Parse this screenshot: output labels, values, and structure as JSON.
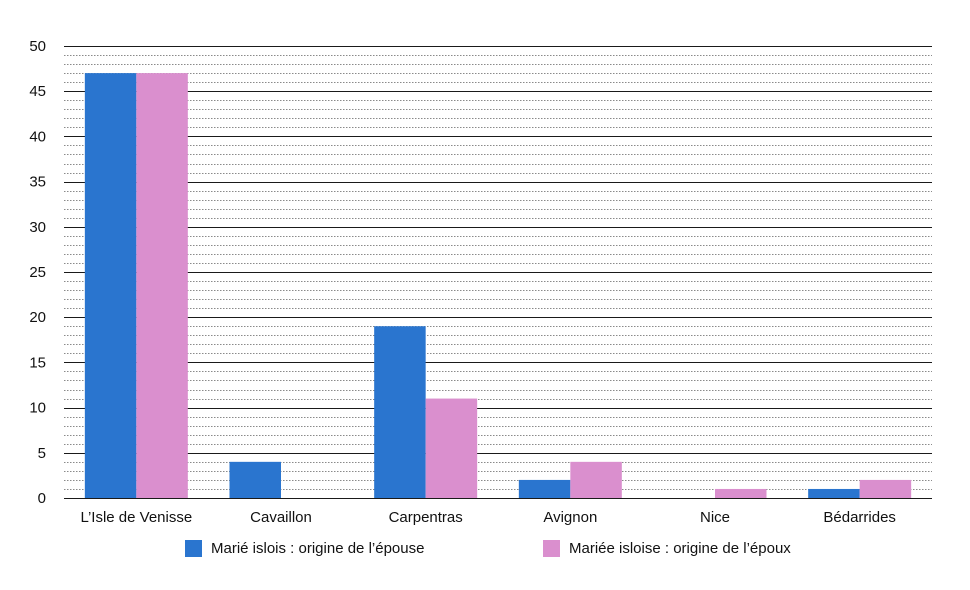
{
  "chart_data": {
    "type": "bar",
    "title": "",
    "xlabel": "",
    "ylabel": "",
    "ylim": [
      0,
      50
    ],
    "yticks": [
      0,
      5,
      10,
      15,
      20,
      25,
      30,
      35,
      40,
      45,
      50
    ],
    "minor_grid_step": 1,
    "grid": true,
    "legend_position": "bottom",
    "categories": [
      "L’Isle de Venisse",
      "Cavaillon",
      "Carpentras",
      "Avignon",
      "Nice",
      "Bédarrides"
    ],
    "series": [
      {
        "name": "Marié islois : origine de l’épouse",
        "color": "#2a75cf",
        "values": [
          47,
          4,
          19,
          2,
          0,
          1
        ]
      },
      {
        "name": "Mariée isloise : origine de l’époux",
        "color": "#da8fce",
        "values": [
          47,
          0,
          11,
          4,
          1,
          2
        ]
      }
    ]
  }
}
